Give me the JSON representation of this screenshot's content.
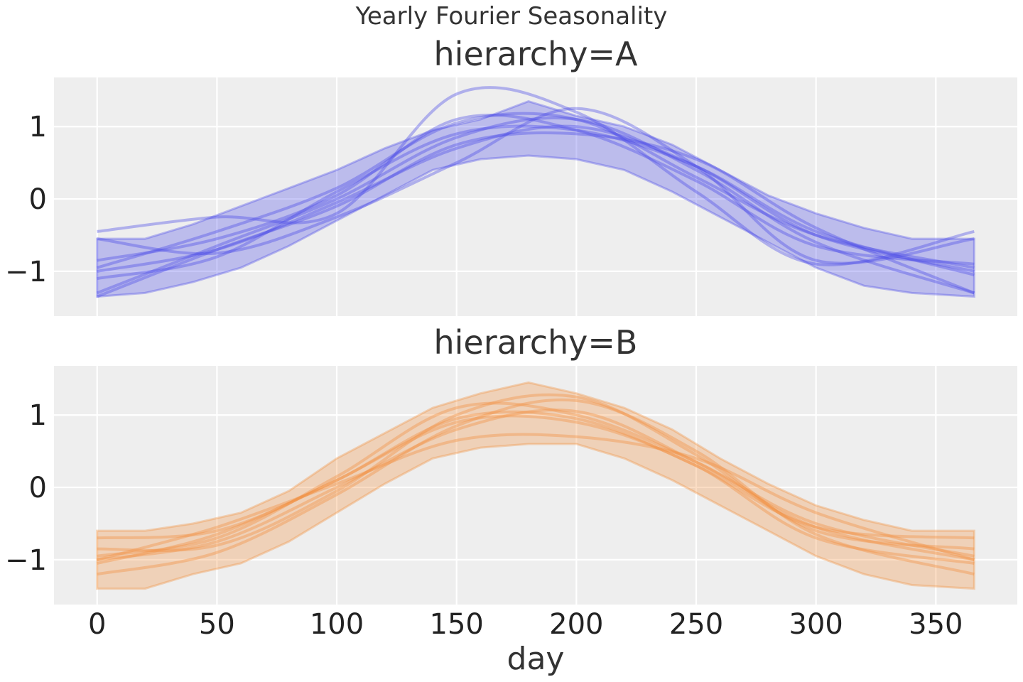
{
  "chart_data": {
    "title": "Yearly Fourier Seasonality",
    "xlabel": "day",
    "x_ticks": [
      0,
      50,
      100,
      150,
      200,
      250,
      300,
      350
    ],
    "y_ticks": [
      1,
      0,
      -1
    ],
    "y_tick_labels": [
      "1",
      "0",
      "−1"
    ],
    "xlim": [
      -18,
      384
    ],
    "ylim": [
      -1.62,
      1.68
    ],
    "grid": true,
    "panels": [
      {
        "type": "line",
        "title": "hierarchy=A",
        "color": "#4a4ae8",
        "band": {
          "x": [
            0,
            20,
            40,
            60,
            80,
            100,
            120,
            140,
            160,
            180,
            200,
            220,
            240,
            260,
            280,
            300,
            320,
            340,
            366
          ],
          "lower": [
            -1.35,
            -1.3,
            -1.15,
            -0.95,
            -0.65,
            -0.3,
            0.05,
            0.4,
            0.55,
            0.6,
            0.55,
            0.4,
            0.1,
            -0.25,
            -0.6,
            -0.95,
            -1.2,
            -1.3,
            -1.35
          ],
          "upper": [
            -0.55,
            -0.55,
            -0.35,
            -0.1,
            0.15,
            0.4,
            0.7,
            0.95,
            1.1,
            1.35,
            1.15,
            1.0,
            0.75,
            0.4,
            0.05,
            -0.2,
            -0.4,
            -0.55,
            -0.55
          ]
        },
        "series": [
          {
            "x": [
              0,
              50,
              100,
              150,
              200,
              250,
              300,
              366
            ],
            "values": [
              -1.0,
              -0.7,
              -0.05,
              0.7,
              1.0,
              0.45,
              -0.5,
              -1.0
            ]
          },
          {
            "x": [
              0,
              50,
              100,
              150,
              200,
              250,
              300,
              366
            ],
            "values": [
              -1.3,
              -0.65,
              0.0,
              0.85,
              1.1,
              0.4,
              -0.6,
              -1.3
            ]
          },
          {
            "x": [
              0,
              50,
              100,
              150,
              200,
              250,
              300,
              366
            ],
            "values": [
              -0.45,
              -0.25,
              -0.2,
              1.45,
              1.2,
              0.1,
              -0.9,
              -0.45
            ]
          },
          {
            "x": [
              0,
              50,
              100,
              150,
              200,
              250,
              300,
              366
            ],
            "values": [
              -1.1,
              -0.8,
              0.1,
              0.9,
              0.95,
              0.45,
              -0.45,
              -1.05
            ]
          },
          {
            "x": [
              0,
              50,
              100,
              150,
              200,
              250,
              300,
              366
            ],
            "values": [
              -0.95,
              -0.45,
              0.15,
              1.05,
              1.1,
              0.3,
              -0.5,
              -0.95
            ]
          },
          {
            "x": [
              0,
              50,
              100,
              150,
              200,
              250,
              300,
              366
            ],
            "values": [
              -0.55,
              -0.75,
              -0.25,
              0.5,
              1.25,
              0.45,
              -0.85,
              -0.55
            ]
          },
          {
            "x": [
              0,
              50,
              100,
              150,
              200,
              250,
              300,
              366
            ],
            "values": [
              -1.35,
              -0.7,
              -0.1,
              0.75,
              0.9,
              0.55,
              -0.4,
              -1.3
            ]
          },
          {
            "x": [
              0,
              50,
              100,
              150,
              200,
              250,
              300,
              366
            ],
            "values": [
              -0.85,
              -0.55,
              0.05,
              1.1,
              0.95,
              0.25,
              -0.65,
              -0.9
            ]
          }
        ]
      },
      {
        "type": "line",
        "title": "hierarchy=B",
        "color": "#f28e3c",
        "band": {
          "x": [
            0,
            20,
            40,
            60,
            80,
            100,
            120,
            140,
            160,
            180,
            200,
            220,
            240,
            260,
            280,
            300,
            320,
            340,
            366
          ],
          "lower": [
            -1.4,
            -1.4,
            -1.2,
            -1.05,
            -0.75,
            -0.35,
            0.05,
            0.4,
            0.55,
            0.6,
            0.6,
            0.4,
            0.1,
            -0.25,
            -0.6,
            -0.95,
            -1.2,
            -1.35,
            -1.4
          ],
          "upper": [
            -0.6,
            -0.6,
            -0.5,
            -0.35,
            -0.05,
            0.4,
            0.75,
            1.1,
            1.3,
            1.45,
            1.3,
            1.1,
            0.8,
            0.4,
            0.05,
            -0.25,
            -0.45,
            -0.6,
            -0.6
          ]
        },
        "series": [
          {
            "x": [
              0,
              50,
              100,
              150,
              200,
              250,
              300,
              366
            ],
            "values": [
              -1.0,
              -0.75,
              0.0,
              0.8,
              1.05,
              0.35,
              -0.55,
              -1.0
            ]
          },
          {
            "x": [
              0,
              50,
              100,
              150,
              200,
              250,
              300,
              366
            ],
            "values": [
              -0.7,
              -0.6,
              0.1,
              0.95,
              0.95,
              0.3,
              -0.55,
              -0.7
            ]
          },
          {
            "x": [
              0,
              50,
              100,
              150,
              200,
              250,
              300,
              366
            ],
            "values": [
              -1.2,
              -0.9,
              -0.1,
              0.85,
              1.2,
              0.5,
              -0.65,
              -1.2
            ]
          },
          {
            "x": [
              0,
              50,
              100,
              150,
              200,
              250,
              300,
              366
            ],
            "values": [
              -0.95,
              -0.7,
              0.15,
              1.1,
              1.0,
              0.35,
              -0.5,
              -0.95
            ]
          },
          {
            "x": [
              0,
              50,
              100,
              150,
              200,
              250,
              300,
              366
            ],
            "values": [
              -1.0,
              -0.55,
              0.05,
              0.65,
              0.7,
              0.4,
              -0.35,
              -1.0
            ]
          },
          {
            "x": [
              0,
              50,
              100,
              150,
              200,
              250,
              300,
              366
            ],
            "values": [
              -0.85,
              -0.8,
              -0.05,
              1.0,
              1.25,
              0.45,
              -0.6,
              -0.85
            ]
          },
          {
            "x": [
              0,
              50,
              100,
              150,
              200,
              250,
              300,
              366
            ],
            "values": [
              -1.05,
              -0.65,
              0.1,
              0.9,
              0.9,
              0.3,
              -0.7,
              -1.05
            ]
          }
        ]
      }
    ]
  }
}
